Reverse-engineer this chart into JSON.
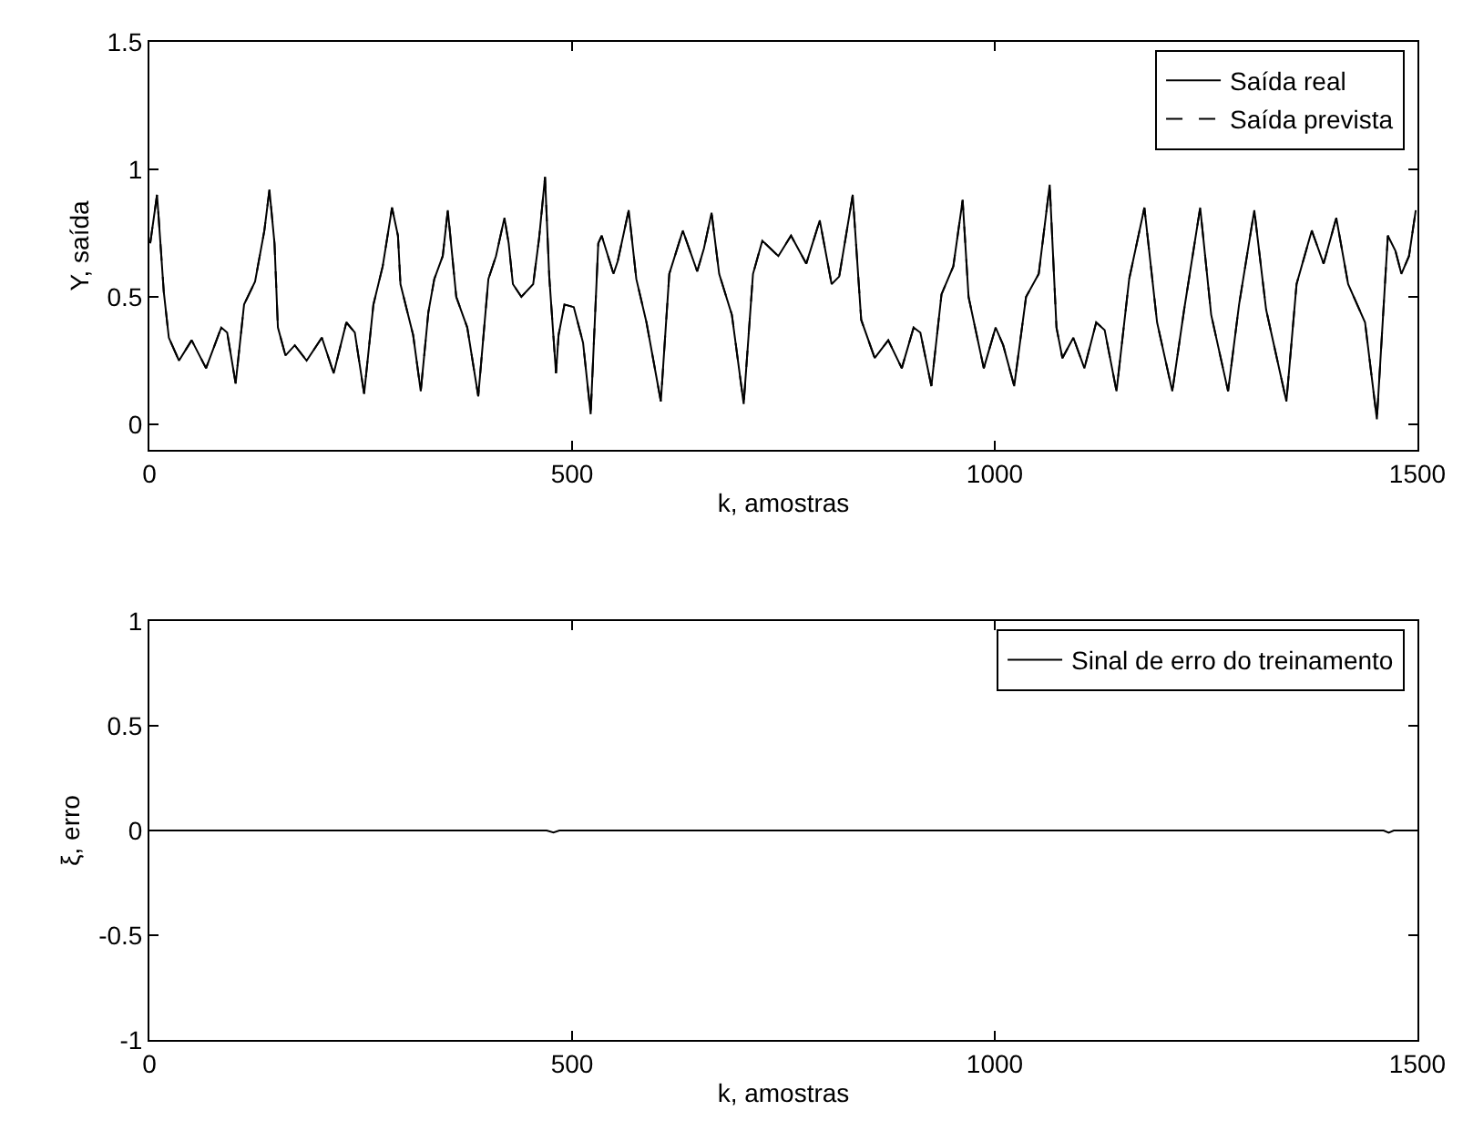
{
  "chart_data": [
    {
      "type": "line",
      "xlabel": "k, amostras",
      "ylabel": "Y, saída",
      "xlim": [
        0,
        1500
      ],
      "xticks": [
        0,
        500,
        1000,
        1500
      ],
      "ylim": [
        -0.1,
        1.5
      ],
      "yticks": [
        0,
        0.5,
        1,
        1.5
      ],
      "grid": false,
      "legend": "top right",
      "series": [
        {
          "name": "Saída real",
          "color": "#000000",
          "line_style": "solid",
          "x": [
            1,
            9,
            11,
            17,
            23,
            35,
            50,
            67,
            85,
            92,
            102,
            112,
            125,
            136,
            142,
            148,
            152,
            161,
            172,
            186,
            204,
            218,
            233,
            243,
            254,
            265,
            276,
            287,
            294,
            297,
            312,
            321,
            330,
            337,
            347,
            353,
            363,
            376,
            389,
            401,
            410,
            420,
            425,
            430,
            440,
            454,
            461,
            468,
            473,
            481,
            484,
            491,
            502,
            513,
            522,
            531,
            535,
            549,
            554,
            567,
            576,
            588,
            605,
            615,
            631,
            648,
            656,
            665,
            674,
            689,
            703,
            714,
            725,
            744,
            759,
            777,
            793,
            807,
            816,
            832,
            842,
            858,
            874,
            890,
            904,
            912,
            925,
            937,
            951,
            962,
            969,
            987,
            1001,
            1010,
            1023,
            1037,
            1052,
            1065,
            1073,
            1080,
            1093,
            1106,
            1120,
            1130,
            1144,
            1159,
            1177,
            1192,
            1210,
            1224,
            1243,
            1256,
            1276,
            1289,
            1307,
            1321,
            1345,
            1357,
            1375,
            1389,
            1404,
            1418,
            1438,
            1452,
            1465,
            1474,
            1481,
            1490,
            1498
          ],
          "values": [
            0.71,
            0.9,
            0.81,
            0.52,
            0.34,
            0.25,
            0.33,
            0.22,
            0.38,
            0.36,
            0.16,
            0.47,
            0.56,
            0.76,
            0.92,
            0.71,
            0.38,
            0.27,
            0.31,
            0.25,
            0.34,
            0.2,
            0.4,
            0.36,
            0.12,
            0.47,
            0.62,
            0.85,
            0.74,
            0.55,
            0.35,
            0.13,
            0.44,
            0.57,
            0.66,
            0.84,
            0.5,
            0.38,
            0.11,
            0.57,
            0.66,
            0.81,
            0.71,
            0.55,
            0.5,
            0.55,
            0.73,
            0.97,
            0.58,
            0.2,
            0.35,
            0.47,
            0.46,
            0.32,
            0.04,
            0.71,
            0.74,
            0.59,
            0.64,
            0.84,
            0.57,
            0.4,
            0.09,
            0.59,
            0.76,
            0.6,
            0.69,
            0.83,
            0.59,
            0.43,
            0.08,
            0.59,
            0.72,
            0.66,
            0.74,
            0.63,
            0.8,
            0.55,
            0.58,
            0.9,
            0.41,
            0.26,
            0.33,
            0.22,
            0.38,
            0.36,
            0.15,
            0.51,
            0.62,
            0.88,
            0.5,
            0.22,
            0.38,
            0.31,
            0.15,
            0.5,
            0.59,
            0.94,
            0.38,
            0.26,
            0.34,
            0.22,
            0.4,
            0.37,
            0.13,
            0.57,
            0.85,
            0.4,
            0.13,
            0.45,
            0.85,
            0.43,
            0.13,
            0.47,
            0.84,
            0.45,
            0.09,
            0.55,
            0.76,
            0.63,
            0.81,
            0.55,
            0.4,
            0.02,
            0.74,
            0.68,
            0.59,
            0.66,
            0.84
          ]
        },
        {
          "name": "Saída prevista",
          "color": "#000000",
          "line_style": "dashed",
          "x": [
            1,
            9,
            11,
            17,
            23,
            35,
            50,
            67,
            85,
            92,
            102,
            112,
            125,
            136,
            142,
            148,
            152,
            161,
            172,
            186,
            204,
            218,
            233,
            243,
            254,
            265,
            276,
            287,
            294,
            297,
            312,
            321,
            330,
            337,
            347,
            353,
            363,
            376,
            389,
            401,
            410,
            420,
            425,
            430,
            440,
            454,
            461,
            468,
            473,
            481,
            484,
            491,
            502,
            513,
            522,
            531,
            535,
            549,
            554,
            567,
            576,
            588,
            605,
            615,
            631,
            648,
            656,
            665,
            674,
            689,
            703,
            714,
            725,
            744,
            759,
            777,
            793,
            807,
            816,
            832,
            842,
            858,
            874,
            890,
            904,
            912,
            925,
            937,
            951,
            962,
            969,
            987,
            1001,
            1010,
            1023,
            1037,
            1052,
            1065,
            1073,
            1080,
            1093,
            1106,
            1120,
            1130,
            1144,
            1159,
            1177,
            1192,
            1210,
            1224,
            1243,
            1256,
            1276,
            1289,
            1307,
            1321,
            1345,
            1357,
            1375,
            1389,
            1404,
            1418,
            1438,
            1452,
            1465,
            1474,
            1481,
            1490,
            1498
          ],
          "values": [
            0.71,
            0.9,
            0.81,
            0.52,
            0.34,
            0.25,
            0.33,
            0.22,
            0.38,
            0.36,
            0.16,
            0.47,
            0.56,
            0.76,
            0.92,
            0.71,
            0.38,
            0.27,
            0.31,
            0.25,
            0.34,
            0.2,
            0.4,
            0.36,
            0.12,
            0.47,
            0.62,
            0.85,
            0.74,
            0.55,
            0.35,
            0.13,
            0.44,
            0.57,
            0.66,
            0.84,
            0.5,
            0.38,
            0.11,
            0.57,
            0.66,
            0.81,
            0.71,
            0.55,
            0.5,
            0.55,
            0.73,
            0.97,
            0.58,
            0.2,
            0.35,
            0.47,
            0.46,
            0.32,
            0.04,
            0.71,
            0.74,
            0.59,
            0.64,
            0.84,
            0.57,
            0.4,
            0.09,
            0.59,
            0.76,
            0.6,
            0.69,
            0.83,
            0.59,
            0.43,
            0.08,
            0.59,
            0.72,
            0.66,
            0.74,
            0.63,
            0.8,
            0.55,
            0.58,
            0.9,
            0.41,
            0.26,
            0.33,
            0.22,
            0.38,
            0.36,
            0.15,
            0.51,
            0.62,
            0.88,
            0.5,
            0.22,
            0.38,
            0.31,
            0.15,
            0.5,
            0.59,
            0.94,
            0.38,
            0.26,
            0.34,
            0.22,
            0.4,
            0.37,
            0.13,
            0.57,
            0.85,
            0.4,
            0.13,
            0.45,
            0.85,
            0.43,
            0.13,
            0.47,
            0.84,
            0.45,
            0.09,
            0.55,
            0.76,
            0.63,
            0.81,
            0.55,
            0.4,
            0.02,
            0.74,
            0.68,
            0.59,
            0.66,
            0.84
          ]
        }
      ]
    },
    {
      "type": "line",
      "xlabel": "k, amostras",
      "ylabel": "ξ, erro",
      "xlim": [
        0,
        1500
      ],
      "xticks": [
        0,
        500,
        1000,
        1500
      ],
      "ylim": [
        -1,
        1
      ],
      "yticks": [
        -1,
        -0.5,
        0,
        0.5,
        1
      ],
      "grid": false,
      "legend": "top right",
      "series": [
        {
          "name": "Sinal de erro do treinamento",
          "color": "#000000",
          "line_style": "solid",
          "x": [
            0,
            470,
            478,
            485,
            1460,
            1466,
            1472,
            1500
          ],
          "values": [
            0,
            0,
            -0.01,
            0,
            0,
            -0.01,
            0,
            0
          ]
        }
      ]
    }
  ]
}
